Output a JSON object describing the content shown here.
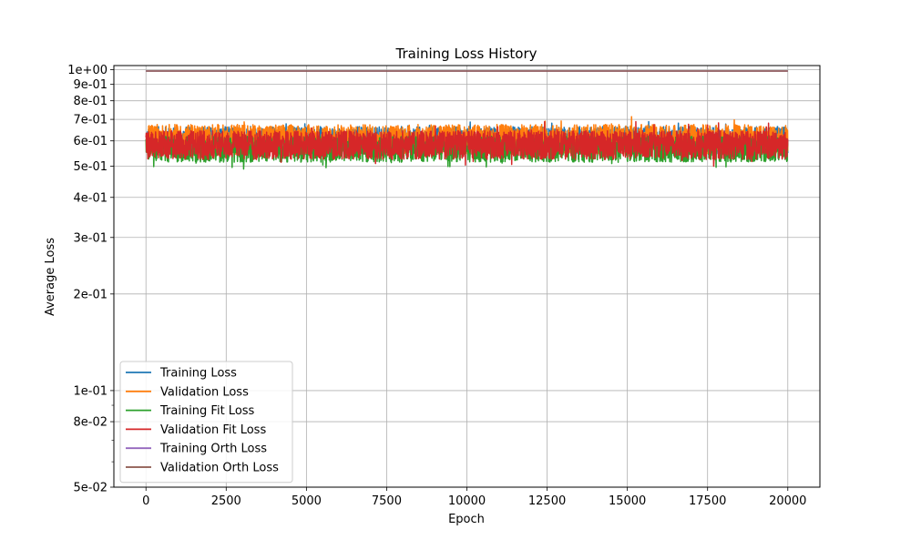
{
  "chart_data": {
    "type": "line",
    "title": "Training Loss History",
    "xlabel": "Epoch",
    "ylabel": "Average Loss",
    "yscale": "log",
    "xlim": [
      -1000,
      21000
    ],
    "ylim": [
      0.05,
      1.03
    ],
    "x_ticks": [
      0,
      2500,
      5000,
      7500,
      10000,
      12500,
      15000,
      17500,
      20000
    ],
    "x_tick_labels": [
      "0",
      "2500",
      "5000",
      "7500",
      "10000",
      "12500",
      "15000",
      "17500",
      "20000"
    ],
    "y_ticks": [
      0.05,
      0.08,
      0.1,
      0.2,
      0.3,
      0.4,
      0.5,
      0.6,
      0.7,
      0.8,
      0.9,
      1.0
    ],
    "y_tick_labels": [
      "5e-02",
      "8e-02",
      "1e-01",
      "2e-01",
      "3e-01",
      "4e-01",
      "5e-01",
      "6e-01",
      "7e-01",
      "8e-01",
      "9e-01",
      "1e+00"
    ],
    "grid": true,
    "legend_position": "lower-left",
    "x_range": [
      0,
      20000
    ],
    "series": [
      {
        "name": "Training Loss",
        "color": "#1f77b4",
        "style": "noisy",
        "center": 0.605,
        "low": 0.545,
        "high": 0.665,
        "spike_max": 0.69
      },
      {
        "name": "Validation Loss",
        "color": "#ff7f0e",
        "style": "noisy",
        "center": 0.605,
        "low": 0.545,
        "high": 0.675,
        "spike_max": 0.715
      },
      {
        "name": "Training Fit Loss",
        "color": "#2ca02c",
        "style": "noisy",
        "center": 0.575,
        "low": 0.515,
        "high": 0.62,
        "spike_min": 0.49
      },
      {
        "name": "Validation Fit Loss",
        "color": "#d62728",
        "style": "noisy",
        "center": 0.585,
        "low": 0.525,
        "high": 0.645,
        "spike_max": 0.69,
        "spike_min": 0.5
      },
      {
        "name": "Training Orth Loss",
        "color": "#9467bd",
        "style": "flat",
        "value": 0.99
      },
      {
        "name": "Validation Orth Loss",
        "color": "#8c564b",
        "style": "flat",
        "value": 0.99
      }
    ]
  }
}
